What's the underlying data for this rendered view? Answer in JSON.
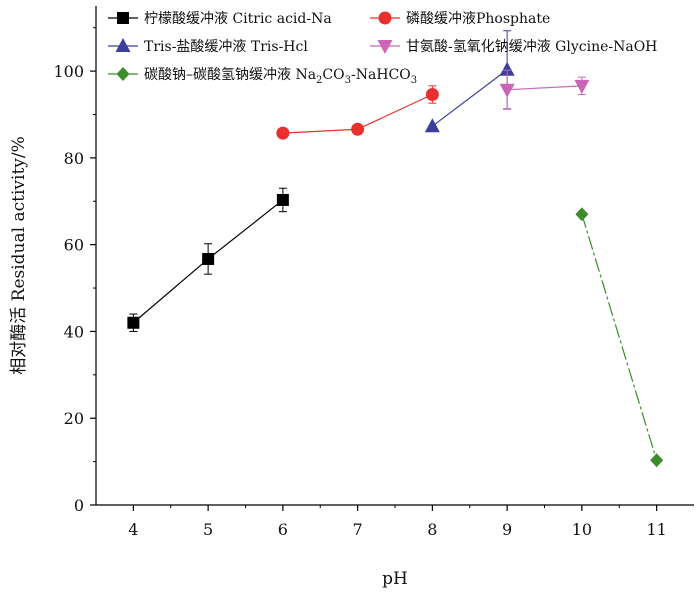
{
  "chart_data": {
    "type": "line",
    "xlabel": "pH",
    "ylabel": "相对酶活 Residual activity/%",
    "xlim": [
      3.5,
      11.5
    ],
    "ylim": [
      0,
      115
    ],
    "x_ticks": [
      "4",
      "5",
      "6",
      "7",
      "8",
      "9",
      "10",
      "11"
    ],
    "y_ticks": [
      "0",
      "20",
      "40",
      "60",
      "80",
      "100"
    ],
    "grid": false,
    "legend_placement": "top",
    "series": [
      {
        "name": "柠檬酸缓冲液 Citric acid-Na",
        "marker": "square",
        "color": "#000000",
        "dash": "solid",
        "x": [
          4,
          5,
          6
        ],
        "y": [
          42,
          56.7,
          70.3
        ],
        "err": [
          2,
          3.5,
          2.7
        ]
      },
      {
        "name": "磷酸缓冲液Phosphate",
        "marker": "circle",
        "color": "#e8312f",
        "dash": "solid",
        "x": [
          6,
          7,
          8
        ],
        "y": [
          85.7,
          86.6,
          94.6
        ],
        "err": [
          0.8,
          0.8,
          2
        ]
      },
      {
        "name": "Tris-盐酸缓冲液 Tris-Hcl",
        "marker": "triangle-up",
        "color": "#3a3f9e",
        "dash": "solid",
        "x": [
          8,
          9
        ],
        "y": [
          87.3,
          100.3
        ],
        "err": [
          0,
          9
        ]
      },
      {
        "name": "甘氨酸-氢氧化钠缓冲液 Glycine-NaOH",
        "marker": "triangle-down",
        "color": "#c966b8",
        "dash": "solid",
        "x": [
          9,
          10
        ],
        "y": [
          95.7,
          96.6
        ],
        "err": [
          4.5,
          2
        ]
      },
      {
        "name_parts": [
          "碳酸钠–碳酸氢钠缓冲液 Na",
          "2",
          "CO",
          "3",
          "-NaHCO",
          "3"
        ],
        "marker": "diamond",
        "color": "#3c8c2c",
        "dash": "dashed",
        "x": [
          10,
          11
        ],
        "y": [
          67,
          10.3
        ],
        "err": [
          0,
          0
        ]
      }
    ]
  }
}
